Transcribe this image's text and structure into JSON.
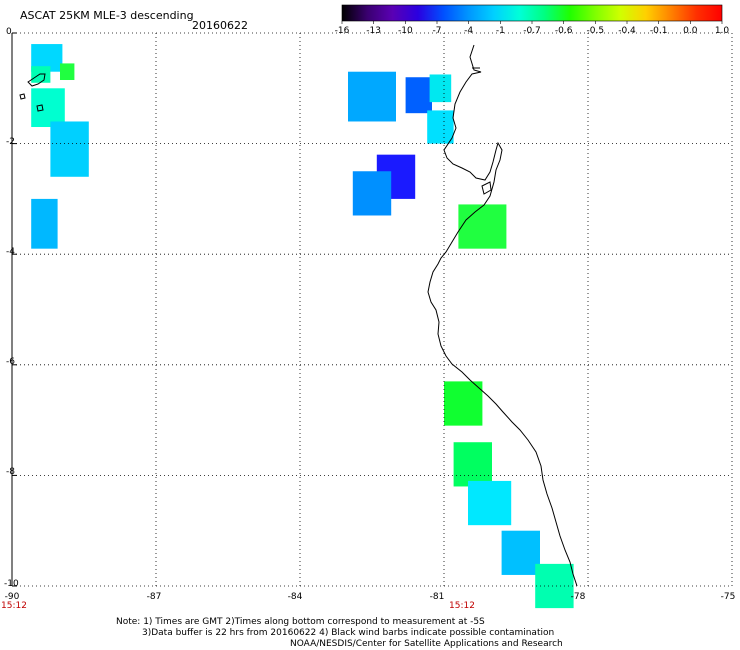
{
  "header": {
    "title": "ASCAT 25KM MLE-3 descending",
    "date": "20160622"
  },
  "colorbar": {
    "ticks": [
      "-16",
      "-13",
      "-10",
      "-7",
      "-4",
      "-1",
      "-0.7",
      "-0.6",
      "-0.5",
      "-0.4",
      "-0.1",
      "0.0",
      "1.0"
    ],
    "colors": [
      "#000000",
      "#3a0070",
      "#5a00b4",
      "#2a00e0",
      "#0050ff",
      "#0096ff",
      "#00d0ff",
      "#00ffd8",
      "#00ff80",
      "#20ff00",
      "#80ff00",
      "#d0ff00",
      "#ffd000",
      "#ff8000",
      "#ff3000",
      "#ff0000"
    ]
  },
  "axes": {
    "y_labels": [
      "0",
      "-2",
      "-4",
      "-6",
      "-8",
      "-10"
    ],
    "x_labels": [
      "-90",
      "-87",
      "-84",
      "-81",
      "-78",
      "-75"
    ],
    "times": [
      "15:12",
      "15:12"
    ]
  },
  "notes": {
    "line1": "Note: 1) Times are GMT 2)Times along bottom correspond to measurement at -5S",
    "line2": "3)Data buffer is 22 hrs from 20160622 4) Black wind barbs indicate possible contamination",
    "line3": "NOAA/NESDIS/Center for Satellite Applications and Research"
  },
  "chart_data": {
    "type": "heatmap",
    "title": "ASCAT 25KM MLE-3 descending",
    "date": "20160622",
    "xlim": [
      -90,
      -75
    ],
    "ylim": [
      -10,
      0
    ],
    "x_ticks": [
      -90,
      -87,
      -84,
      -81,
      -78,
      -75
    ],
    "y_ticks": [
      0,
      -2,
      -4,
      -6,
      -8,
      -10
    ],
    "colorbar_ticks": [
      -16,
      -13,
      -10,
      -7,
      -4,
      -1,
      -0.7,
      -0.6,
      -0.5,
      -0.4,
      -0.1,
      0.0,
      1.0
    ],
    "grid": true,
    "cells": [
      {
        "lon": -89.6,
        "lat": -0.2,
        "w": 0.65,
        "h": 0.5,
        "color": "#00d8ff"
      },
      {
        "lon": -89.6,
        "lat": -0.6,
        "w": 0.4,
        "h": 0.3,
        "color": "#00ffb4"
      },
      {
        "lon": -89.0,
        "lat": -0.55,
        "w": 0.3,
        "h": 0.3,
        "color": "#20ff40"
      },
      {
        "lon": -89.6,
        "lat": -1.0,
        "w": 0.7,
        "h": 0.7,
        "color": "#00ffd0"
      },
      {
        "lon": -89.2,
        "lat": -1.6,
        "w": 0.8,
        "h": 1.0,
        "color": "#00d0ff"
      },
      {
        "lon": -89.6,
        "lat": -3.0,
        "w": 0.55,
        "h": 0.9,
        "color": "#00b8ff"
      },
      {
        "lon": -83.0,
        "lat": -0.7,
        "w": 1.0,
        "h": 0.9,
        "color": "#00a8ff"
      },
      {
        "lon": -81.8,
        "lat": -0.8,
        "w": 0.55,
        "h": 0.65,
        "color": "#0060ff"
      },
      {
        "lon": -81.3,
        "lat": -0.75,
        "w": 0.45,
        "h": 0.5,
        "color": "#00e8f0"
      },
      {
        "lon": -81.35,
        "lat": -1.4,
        "w": 0.55,
        "h": 0.6,
        "color": "#00e0ff"
      },
      {
        "lon": -82.4,
        "lat": -2.2,
        "w": 0.8,
        "h": 0.8,
        "color": "#1a1aff"
      },
      {
        "lon": -82.9,
        "lat": -2.5,
        "w": 0.8,
        "h": 0.8,
        "color": "#0090ff"
      },
      {
        "lon": -80.7,
        "lat": -3.1,
        "w": 1.0,
        "h": 0.8,
        "color": "#20ff40"
      },
      {
        "lon": -81.0,
        "lat": -6.3,
        "w": 0.8,
        "h": 0.8,
        "color": "#10ff30"
      },
      {
        "lon": -80.8,
        "lat": -7.4,
        "w": 0.8,
        "h": 0.8,
        "color": "#00ff60"
      },
      {
        "lon": -80.5,
        "lat": -8.1,
        "w": 0.9,
        "h": 0.8,
        "color": "#00e8ff"
      },
      {
        "lon": -79.8,
        "lat": -9.0,
        "w": 0.8,
        "h": 0.8,
        "color": "#00c0ff"
      },
      {
        "lon": -79.1,
        "lat": -9.6,
        "w": 0.8,
        "h": 0.8,
        "color": "#00ffb0"
      }
    ]
  }
}
